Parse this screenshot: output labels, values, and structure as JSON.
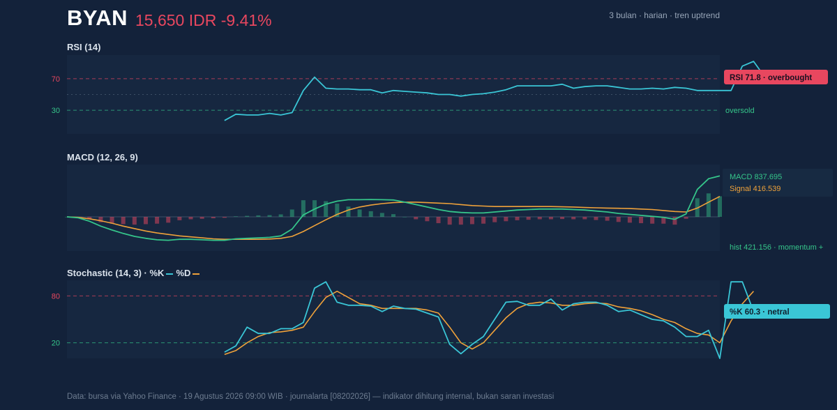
{
  "header": {
    "ticker": "BYAN",
    "price_line": "15,650 IDR -9.41%",
    "meta": "3 bulan · harian · tren uptrend"
  },
  "colors": {
    "background": "#13223a",
    "panel": "#162740",
    "up": "#35c58a",
    "down": "#e8475f",
    "cyan": "#3ac6d6",
    "orange": "#f0a23a"
  },
  "footer": "Data: bursa via Yahoo Finance · 19 Agustus 2026 09:00 WIB · journalarta [08202026] — indikator dihitung internal, bukan saran investasi",
  "chart_data": [
    {
      "type": "line",
      "title": "RSI (14)",
      "ylim": [
        0,
        100
      ],
      "yticks": [
        30,
        70
      ],
      "overbought": 70,
      "oversold": 30,
      "midline": 50,
      "oversold_label": "oversold",
      "badge": "RSI 71.8 · overbought",
      "series": [
        {
          "name": "RSI",
          "start_index": 14,
          "values": [
            17,
            25,
            24,
            24,
            26,
            24,
            27,
            55,
            72,
            58,
            57,
            57,
            56,
            56,
            52,
            55,
            54,
            53,
            52,
            50,
            50,
            48,
            50,
            51,
            53,
            56,
            61,
            61,
            61,
            61,
            63,
            58,
            60,
            61,
            61,
            59,
            57,
            57,
            58,
            57,
            59,
            58,
            55,
            55,
            55,
            55,
            86,
            92,
            72
          ]
        }
      ]
    },
    {
      "type": "line",
      "title": "MACD (12, 26, 9)",
      "ylim": [
        -700,
        1070
      ],
      "series": [
        {
          "name": "MACD",
          "label": "MACD 837.695",
          "values": [
            0,
            -20,
            -90,
            -190,
            -270,
            -340,
            -400,
            -440,
            -470,
            -480,
            -460,
            -460,
            -470,
            -480,
            -480,
            -450,
            -440,
            -430,
            -420,
            -390,
            -250,
            40,
            160,
            260,
            320,
            350,
            350,
            355,
            350,
            345,
            300,
            250,
            200,
            150,
            110,
            90,
            80,
            80,
            100,
            120,
            140,
            150,
            160,
            160,
            160,
            150,
            140,
            120,
            100,
            70,
            50,
            30,
            10,
            -10,
            -50,
            60,
            560,
            780,
            838
          ]
        },
        {
          "name": "Signal",
          "label": "Signal 416.539",
          "values": [
            0,
            -10,
            -40,
            -80,
            -130,
            -190,
            -240,
            -290,
            -330,
            -360,
            -390,
            -410,
            -430,
            -450,
            -460,
            -460,
            -460,
            -460,
            -455,
            -440,
            -400,
            -300,
            -180,
            -60,
            50,
            140,
            200,
            240,
            270,
            290,
            300,
            300,
            290,
            280,
            270,
            250,
            230,
            220,
            210,
            210,
            210,
            210,
            210,
            210,
            205,
            200,
            190,
            185,
            180,
            175,
            170,
            160,
            150,
            130,
            110,
            100,
            180,
            300,
            417
          ]
        },
        {
          "name": "Histogram",
          "label": "hist 421.156 · momentum +",
          "values": [
            0,
            -10,
            -50,
            -110,
            -140,
            -150,
            -160,
            -150,
            -140,
            -120,
            -70,
            -50,
            -40,
            -30,
            -20,
            10,
            20,
            30,
            35,
            50,
            150,
            340,
            340,
            320,
            270,
            210,
            150,
            115,
            80,
            55,
            0,
            -50,
            -90,
            -130,
            -160,
            -160,
            -150,
            -140,
            -110,
            -90,
            -70,
            -60,
            -50,
            -50,
            -45,
            -50,
            -50,
            -65,
            -80,
            -105,
            -120,
            -130,
            -140,
            -140,
            -160,
            -40,
            380,
            480,
            421
          ]
        }
      ]
    },
    {
      "type": "line",
      "title": "Stochastic (14, 3) · %K",
      "legend": [
        "%K",
        "%D"
      ],
      "ylim": [
        0,
        100
      ],
      "yticks": [
        20,
        80
      ],
      "overbought": 80,
      "oversold": 20,
      "badge": "%K 60.3 · netral",
      "series": [
        {
          "name": "%K",
          "start_index": 14,
          "values": [
            8,
            16,
            40,
            32,
            32,
            38,
            38,
            46,
            90,
            98,
            72,
            68,
            68,
            67,
            60,
            67,
            64,
            63,
            58,
            53,
            18,
            6,
            18,
            28,
            50,
            72,
            73,
            68,
            68,
            76,
            62,
            70,
            72,
            72,
            68,
            60,
            62,
            56,
            50,
            48,
            40,
            28,
            28,
            36,
            0,
            98,
            98,
            60
          ]
        },
        {
          "name": "%D",
          "start_index": 14,
          "values": [
            5,
            10,
            20,
            28,
            33,
            34,
            36,
            40,
            60,
            78,
            86,
            78,
            70,
            68,
            64,
            64,
            64,
            64,
            62,
            58,
            40,
            20,
            12,
            20,
            36,
            52,
            64,
            70,
            72,
            71,
            68,
            68,
            70,
            71,
            70,
            66,
            64,
            61,
            56,
            50,
            46,
            38,
            32,
            30,
            20,
            48,
            70,
            86
          ]
        }
      ]
    }
  ]
}
